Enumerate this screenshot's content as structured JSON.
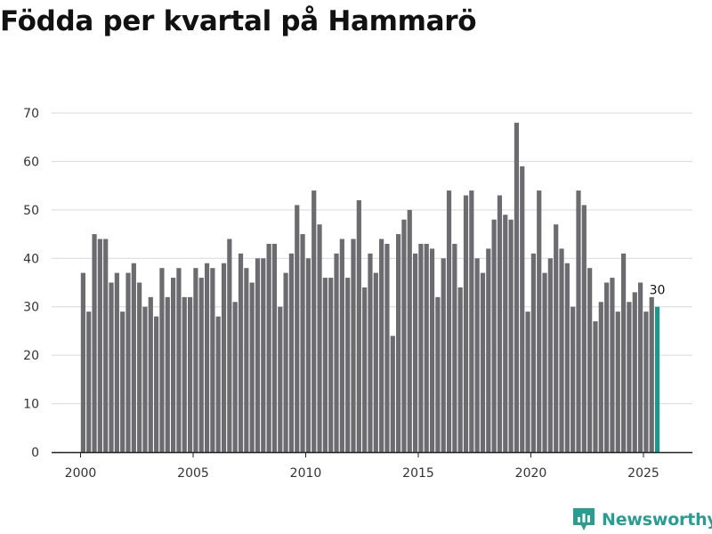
{
  "chart_data": {
    "type": "bar",
    "title": "Födda per kvartal på Hammarö",
    "xlabel": "",
    "ylabel": "",
    "ylim": [
      0,
      70
    ],
    "yticks": [
      0,
      10,
      20,
      30,
      40,
      50,
      60,
      70
    ],
    "xticks": [
      2000,
      2005,
      2010,
      2015,
      2020,
      2025
    ],
    "grid": true,
    "start": {
      "year": 2000,
      "quarter": 1
    },
    "bar_color": "#6b6b70",
    "highlight_color": "#1f968b",
    "last_label": "30",
    "values": [
      37,
      29,
      45,
      44,
      44,
      35,
      37,
      29,
      37,
      39,
      35,
      30,
      32,
      28,
      38,
      32,
      36,
      38,
      32,
      32,
      38,
      36,
      39,
      38,
      28,
      39,
      44,
      31,
      41,
      38,
      35,
      40,
      40,
      43,
      43,
      30,
      37,
      41,
      51,
      45,
      40,
      54,
      47,
      36,
      36,
      41,
      44,
      36,
      44,
      52,
      34,
      41,
      37,
      44,
      43,
      24,
      45,
      48,
      50,
      41,
      43,
      43,
      42,
      32,
      40,
      54,
      43,
      34,
      53,
      54,
      40,
      37,
      42,
      48,
      53,
      49,
      48,
      68,
      59,
      29,
      41,
      54,
      37,
      40,
      47,
      42,
      39,
      30,
      54,
      51,
      38,
      27,
      31,
      35,
      36,
      29,
      41,
      31,
      33,
      35,
      29,
      32,
      30
    ]
  },
  "brand": {
    "name": "Newsworthy",
    "color": "#2a9d92"
  }
}
